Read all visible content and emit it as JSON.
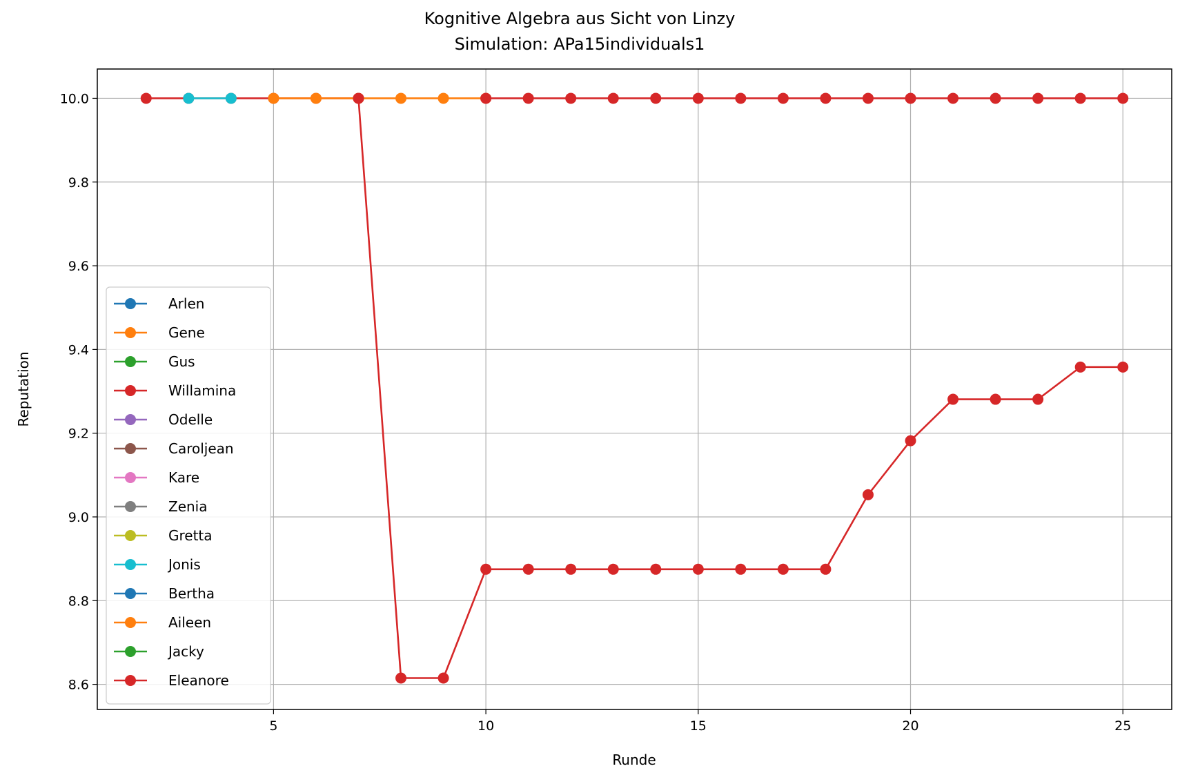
{
  "chart_data": {
    "type": "line",
    "title": "Kognitive Algebra aus Sicht von Linzy",
    "subtitle": "Simulation: APa15individuals1",
    "xlabel": "Runde",
    "ylabel": "Reputation",
    "xlim": [
      0.85,
      26.15
    ],
    "ylim": [
      8.54,
      10.07
    ],
    "xticks": [
      5,
      10,
      15,
      20,
      25
    ],
    "yticks": [
      8.6,
      8.8,
      9.0,
      9.2,
      9.4,
      9.6,
      9.8,
      10.0
    ],
    "ytick_labels": [
      "8.6",
      "8.8",
      "9.0",
      "9.2",
      "9.4",
      "9.6",
      "9.8",
      "10.0"
    ],
    "grid": true,
    "legend_position": "center-left",
    "series": [
      {
        "name": "Arlen",
        "color": "#1f77b4",
        "x": [],
        "y": []
      },
      {
        "name": "Gene",
        "color": "#ff7f0e",
        "x": [],
        "y": []
      },
      {
        "name": "Gus",
        "color": "#2ca02c",
        "x": [],
        "y": []
      },
      {
        "name": "Willamina",
        "color": "#d62728",
        "x": [
          2,
          3,
          4,
          5,
          6,
          7
        ],
        "y": [
          10.0,
          10.0,
          10.0,
          10.0,
          10.0,
          10.0
        ]
      },
      {
        "name": "Odelle",
        "color": "#9467bd",
        "x": [],
        "y": []
      },
      {
        "name": "Caroljean",
        "color": "#8c564b",
        "x": [],
        "y": []
      },
      {
        "name": "Kare",
        "color": "#e377c2",
        "x": [],
        "y": []
      },
      {
        "name": "Zenia",
        "color": "#7f7f7f",
        "x": [],
        "y": []
      },
      {
        "name": "Gretta",
        "color": "#bcbd22",
        "x": [],
        "y": []
      },
      {
        "name": "Jonis",
        "color": "#17becf",
        "x": [
          3,
          4
        ],
        "y": [
          10.0,
          10.0
        ]
      },
      {
        "name": "Bertha",
        "color": "#1f77b4",
        "x": [],
        "y": []
      },
      {
        "name": "Aileen",
        "color": "#ff7f0e",
        "x": [
          5,
          6,
          7,
          8,
          9,
          10
        ],
        "y": [
          10.0,
          10.0,
          10.0,
          10.0,
          10.0,
          10.0
        ]
      },
      {
        "name": "Jacky",
        "color": "#2ca02c",
        "x": [],
        "y": []
      },
      {
        "name": "Eleanore",
        "color": "#d62728",
        "x": [
          10,
          11,
          12,
          13,
          14,
          15,
          16,
          17,
          18,
          19,
          20,
          21,
          22,
          23,
          24,
          25
        ],
        "y": [
          10.0,
          10.0,
          10.0,
          10.0,
          10.0,
          10.0,
          10.0,
          10.0,
          10.0,
          10.0,
          10.0,
          10.0,
          10.0,
          10.0,
          10.0,
          10.0
        ]
      },
      {
        "name": "",
        "color": "#d62728",
        "x": [
          7,
          8,
          9,
          10,
          11,
          12,
          13,
          14,
          15,
          16,
          17,
          18,
          19,
          20,
          21,
          22,
          23,
          24,
          25
        ],
        "y": [
          10.0,
          8.615,
          8.615,
          8.875,
          8.875,
          8.875,
          8.875,
          8.875,
          8.875,
          8.875,
          8.875,
          8.875,
          9.053,
          9.182,
          9.281,
          9.281,
          9.281,
          9.358,
          9.358
        ]
      }
    ]
  }
}
